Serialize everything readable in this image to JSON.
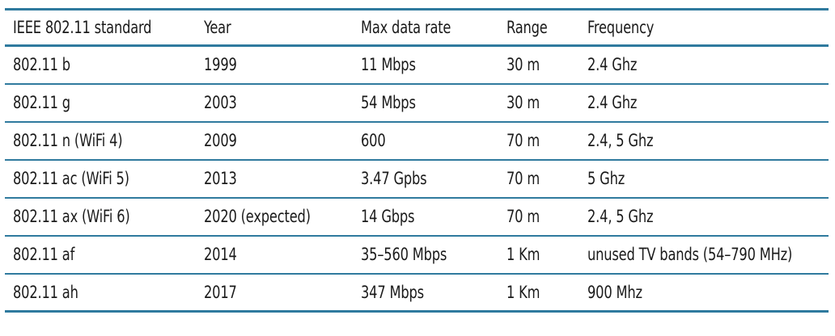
{
  "table": {
    "headers": [
      "IEEE 802.11 standard",
      "Year",
      "Max data rate",
      "Range",
      "Frequency"
    ],
    "rows": [
      [
        "802.11 b",
        "1999",
        "11 Mbps",
        "30 m",
        "2.4 Ghz"
      ],
      [
        "802.11 g",
        "2003",
        "54 Mbps",
        "30 m",
        "2.4 Ghz"
      ],
      [
        "802.11 n (WiFi 4)",
        "2009",
        "600",
        "70 m",
        "2.4, 5 Ghz"
      ],
      [
        "802.11 ac (WiFi 5)",
        "2013",
        "3.47 Gpbs",
        "70 m",
        "5 Ghz"
      ],
      [
        "802.11 ax (WiFi 6)",
        "2020 (expected)",
        "14 Gbps",
        "70 m",
        "2.4, 5 Ghz"
      ],
      [
        "802.11 af",
        "2014",
        "35–560 Mbps",
        "1 Km",
        "unused TV bands (54–790 MHz)"
      ],
      [
        "802.11 ah",
        "2017",
        "347 Mbps",
        "1 Km",
        "900 Mhz"
      ]
    ]
  },
  "colors": {
    "rule": "#2f7a9e",
    "text": "#1a1a1a"
  }
}
